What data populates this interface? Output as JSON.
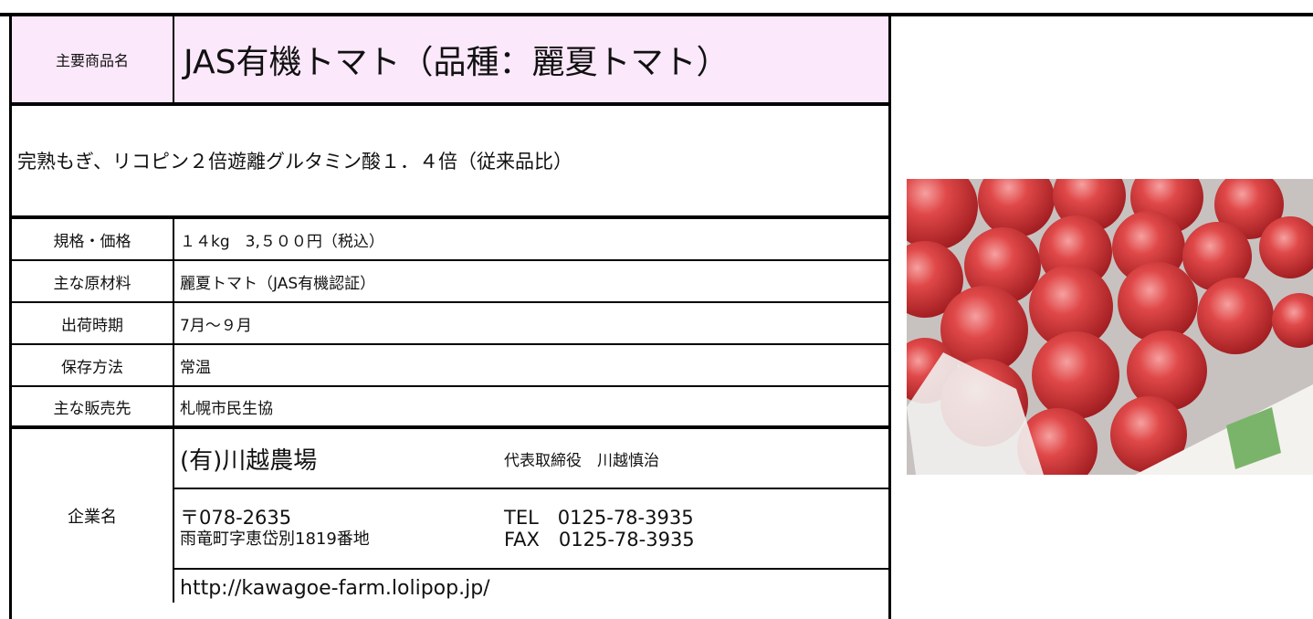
{
  "product": {
    "label": "主要商品名",
    "name": "JAS有機トマト（品種：麗夏トマト）"
  },
  "description": "完熟もぎ、リコピン２倍遊離グルタミン酸１．４倍（従来品比）",
  "specs": [
    {
      "label": "規格・価格",
      "value": "１４kg　3,５００円（税込）"
    },
    {
      "label": "主な原材料",
      "value": "麗夏トマト（JAS有機認証）"
    },
    {
      "label": "出荷時期",
      "value": "7月～９月"
    },
    {
      "label": "保存方法",
      "value": "常温"
    },
    {
      "label": "主な販売先",
      "value": "札幌市民生協"
    }
  ],
  "company": {
    "label": "企業名",
    "name": "(有)川越農場",
    "representative": "代表取締役　川越慎治",
    "address": [
      "〒078-2635",
      "雨竜町字恵岱別1819番地"
    ],
    "contact": [
      "TEL　0125-78-3935",
      "FAX　0125-78-3935"
    ],
    "url": "http://kawagoe-farm.lolipop.jp/"
  }
}
